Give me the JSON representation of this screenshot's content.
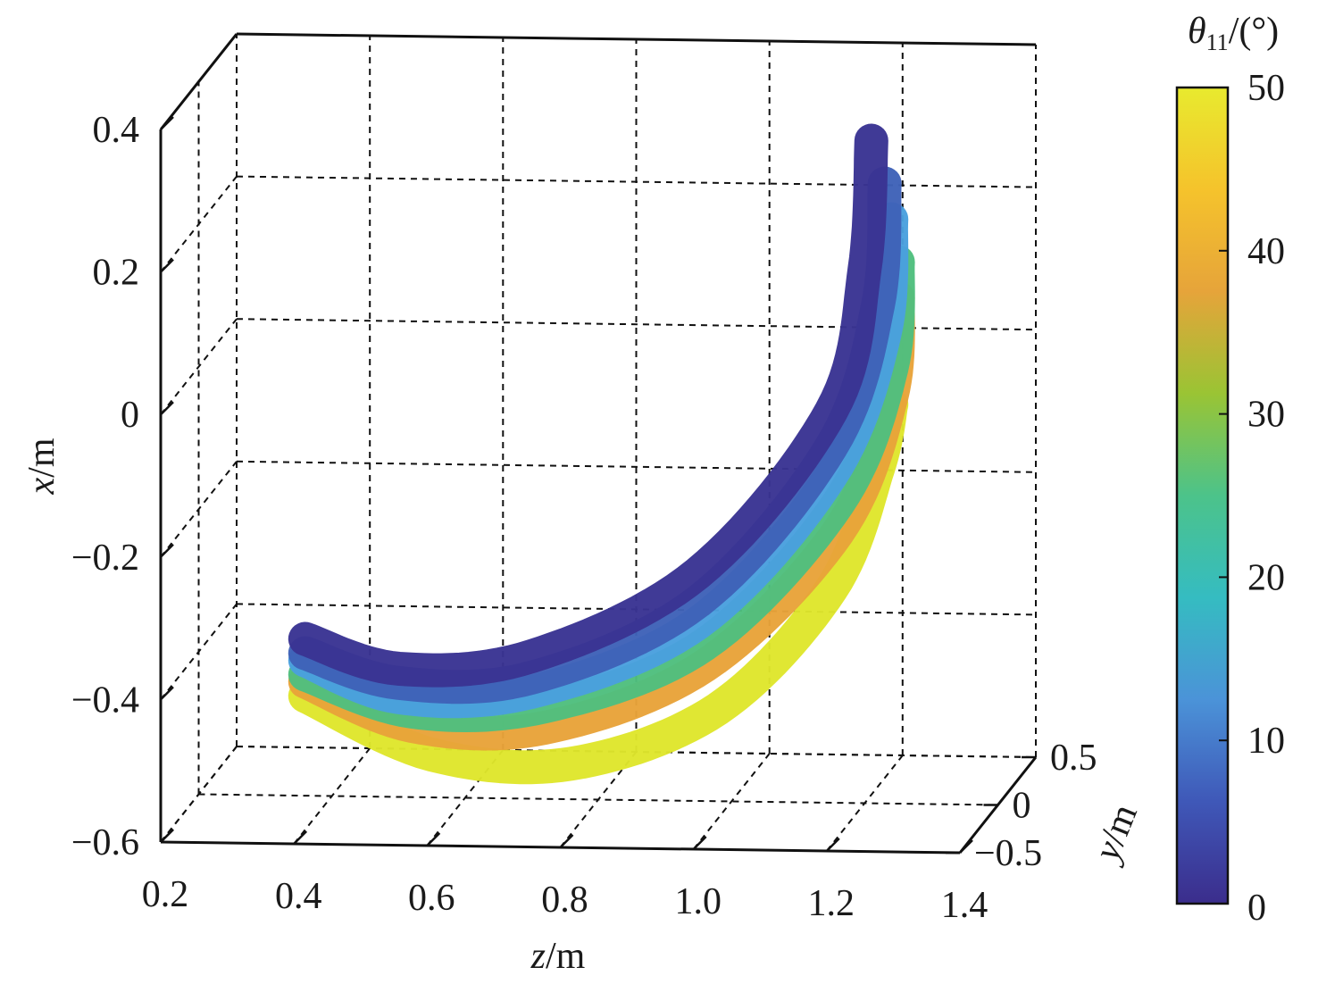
{
  "chart_data": {
    "type": "scatter",
    "projection": "3d",
    "xlabel": {
      "var": "z",
      "unit": "/m"
    },
    "ylabel": {
      "var": "y",
      "unit": "/m"
    },
    "zlabel": {
      "var": "x",
      "unit": "/m"
    },
    "z_ticks": [
      "0.2",
      "0.4",
      "0.6",
      "0.8",
      "1.0",
      "1.2",
      "1.4"
    ],
    "y_ticks": [
      "−0.5",
      "0",
      "0.5"
    ],
    "x_ticks": [
      "−0.6",
      "−0.4",
      "−0.2",
      "0",
      "0.2",
      "0.4"
    ],
    "z_range": [
      0.2,
      1.4
    ],
    "y_range": [
      -0.5,
      0.5
    ],
    "x_range": [
      -0.6,
      0.4
    ],
    "grid": true,
    "colorbar": {
      "label_var": "θ",
      "label_sub": "11",
      "label_unit": "/(°)",
      "range": [
        0,
        50
      ],
      "ticks": [
        "0",
        "10",
        "20",
        "30",
        "40",
        "50"
      ],
      "colormap": [
        "#3b2d8c",
        "#3f58b8",
        "#4b93d8",
        "#35bcc1",
        "#4cc38a",
        "#9ac434",
        "#e6a43a",
        "#f5c32c",
        "#e8ea2e"
      ]
    },
    "series": [
      {
        "theta": 0,
        "color": "#3a3493",
        "z": [
          0.36,
          0.5,
          0.7,
          0.95,
          1.15,
          1.2,
          1.21
        ],
        "x": [
          -0.38,
          -0.42,
          -0.4,
          -0.28,
          -0.05,
          0.15,
          0.33
        ]
      },
      {
        "theta": 10,
        "color": "#3f62b8",
        "z": [
          0.36,
          0.5,
          0.7,
          0.95,
          1.15,
          1.22,
          1.23
        ],
        "x": [
          -0.4,
          -0.44,
          -0.43,
          -0.32,
          -0.1,
          0.1,
          0.27
        ]
      },
      {
        "theta": 20,
        "color": "#4aa0de",
        "z": [
          0.36,
          0.5,
          0.7,
          0.95,
          1.15,
          1.23,
          1.24
        ],
        "x": [
          -0.41,
          -0.46,
          -0.45,
          -0.35,
          -0.14,
          0.06,
          0.22
        ]
      },
      {
        "theta": 30,
        "color": "#4fbf7e",
        "z": [
          0.36,
          0.52,
          0.72,
          0.96,
          1.16,
          1.24,
          1.25
        ],
        "x": [
          -0.43,
          -0.48,
          -0.47,
          -0.38,
          -0.18,
          0.01,
          0.16
        ]
      },
      {
        "theta": 40,
        "color": "#e8a33a",
        "z": [
          0.36,
          0.52,
          0.72,
          0.96,
          1.16,
          1.24,
          1.25
        ],
        "x": [
          -0.44,
          -0.5,
          -0.5,
          -0.41,
          -0.22,
          -0.03,
          0.11
        ]
      },
      {
        "theta": 50,
        "color": "#dfe62c",
        "z": [
          0.36,
          0.55,
          0.76,
          0.98,
          1.15,
          1.22,
          1.24
        ],
        "x": [
          -0.46,
          -0.54,
          -0.55,
          -0.47,
          -0.3,
          -0.13,
          -0.04
        ]
      }
    ]
  }
}
